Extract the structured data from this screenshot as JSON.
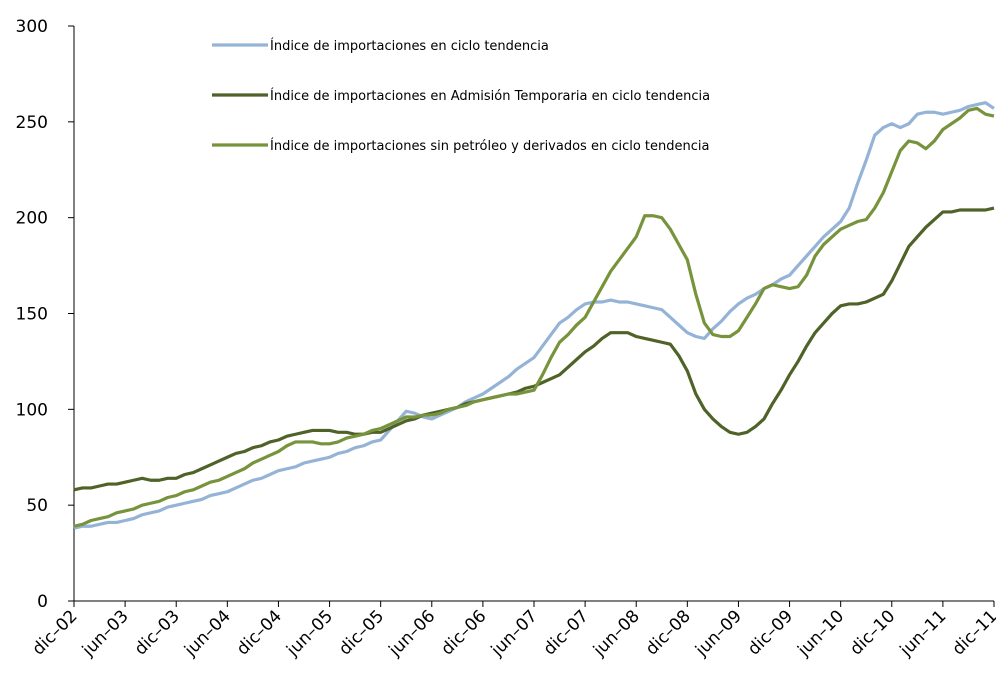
{
  "chart_data": {
    "type": "line",
    "categories": [
      "dic–02",
      null,
      null,
      null,
      null,
      null,
      "jun–03",
      null,
      null,
      null,
      null,
      null,
      "dic–03",
      null,
      null,
      null,
      null,
      null,
      "jun–04",
      null,
      null,
      null,
      null,
      null,
      "dic–04",
      null,
      null,
      null,
      null,
      null,
      "jun–05",
      null,
      null,
      null,
      null,
      null,
      "dic–05",
      null,
      null,
      null,
      null,
      null,
      "jun–06",
      null,
      null,
      null,
      null,
      null,
      "dic–06",
      null,
      null,
      null,
      null,
      null,
      "jun–07",
      null,
      null,
      null,
      null,
      null,
      "dic–07",
      null,
      null,
      null,
      null,
      null,
      "jun–08",
      null,
      null,
      null,
      null,
      null,
      "dic–08",
      null,
      null,
      null,
      null,
      null,
      "jun–09",
      null,
      null,
      null,
      null,
      null,
      "dic–09",
      null,
      null,
      null,
      null,
      null,
      "jun–10",
      null,
      null,
      null,
      null,
      null,
      "dic–10",
      null,
      null,
      null,
      null,
      null,
      "jun–11",
      null,
      null,
      null,
      null,
      null,
      "dic–11"
    ],
    "series": [
      {
        "name": "Índice de importaciones en ciclo tendencia",
        "color": "#95b3d7",
        "values": [
          38,
          39,
          39,
          40,
          41,
          41,
          42,
          43,
          45,
          46,
          47,
          49,
          50,
          51,
          52,
          53,
          55,
          56,
          57,
          59,
          61,
          63,
          64,
          66,
          68,
          69,
          70,
          72,
          73,
          74,
          75,
          77,
          78,
          80,
          81,
          83,
          84,
          89,
          94,
          99,
          98,
          96,
          95,
          97,
          99,
          101,
          104,
          106,
          108,
          111,
          114,
          117,
          121,
          124,
          127,
          133,
          139,
          145,
          148,
          152,
          155,
          156,
          156,
          157,
          156,
          156,
          155,
          154,
          153,
          152,
          148,
          144,
          140,
          138,
          137,
          142,
          146,
          151,
          155,
          158,
          160,
          163,
          165,
          168,
          170,
          175,
          180,
          185,
          190,
          194,
          198,
          205,
          218,
          230,
          243,
          247,
          249,
          247,
          249,
          254,
          255,
          255,
          254,
          255,
          256,
          258,
          259,
          260,
          257
        ]
      },
      {
        "name": "Índice de importaciones en Admisión Temporaria en ciclo tendencia",
        "color": "#4f6228",
        "values": [
          58,
          59,
          59,
          60,
          61,
          61,
          62,
          63,
          64,
          63,
          63,
          64,
          64,
          66,
          67,
          69,
          71,
          73,
          75,
          77,
          78,
          80,
          81,
          83,
          84,
          86,
          87,
          88,
          89,
          89,
          89,
          88,
          88,
          87,
          87,
          88,
          88,
          90,
          92,
          94,
          95,
          97,
          98,
          99,
          100,
          101,
          103,
          104,
          105,
          106,
          107,
          108,
          109,
          111,
          112,
          114,
          116,
          118,
          122,
          126,
          130,
          133,
          137,
          140,
          140,
          140,
          138,
          137,
          136,
          135,
          134,
          128,
          120,
          108,
          100,
          95,
          91,
          88,
          87,
          88,
          91,
          95,
          103,
          110,
          118,
          125,
          133,
          140,
          145,
          150,
          154,
          155,
          155,
          156,
          158,
          160,
          167,
          176,
          185,
          190,
          195,
          199,
          203,
          203,
          204,
          204,
          204,
          204,
          205
        ]
      },
      {
        "name": "Índice de importaciones sin petróleo y derivados en ciclo tendencia",
        "color": "#77933c",
        "values": [
          39,
          40,
          42,
          43,
          44,
          46,
          47,
          48,
          50,
          51,
          52,
          54,
          55,
          57,
          58,
          60,
          62,
          63,
          65,
          67,
          69,
          72,
          74,
          76,
          78,
          81,
          83,
          83,
          83,
          82,
          82,
          83,
          85,
          86,
          87,
          89,
          90,
          92,
          94,
          96,
          96,
          97,
          97,
          98,
          100,
          101,
          102,
          104,
          105,
          106,
          107,
          108,
          108,
          109,
          110,
          118,
          127,
          135,
          139,
          144,
          148,
          156,
          164,
          172,
          178,
          184,
          190,
          201,
          201,
          200,
          194,
          186,
          178,
          160,
          145,
          139,
          138,
          138,
          141,
          148,
          155,
          163,
          165,
          164,
          163,
          164,
          170,
          180,
          186,
          190,
          194,
          196,
          198,
          199,
          205,
          213,
          224,
          235,
          240,
          239,
          236,
          240,
          246,
          249,
          252,
          256,
          257,
          254,
          253
        ]
      }
    ],
    "ylim": [
      0,
      300
    ],
    "yticks": [
      0,
      50,
      100,
      150,
      200,
      250,
      300
    ],
    "grid": false,
    "legend": "top"
  }
}
